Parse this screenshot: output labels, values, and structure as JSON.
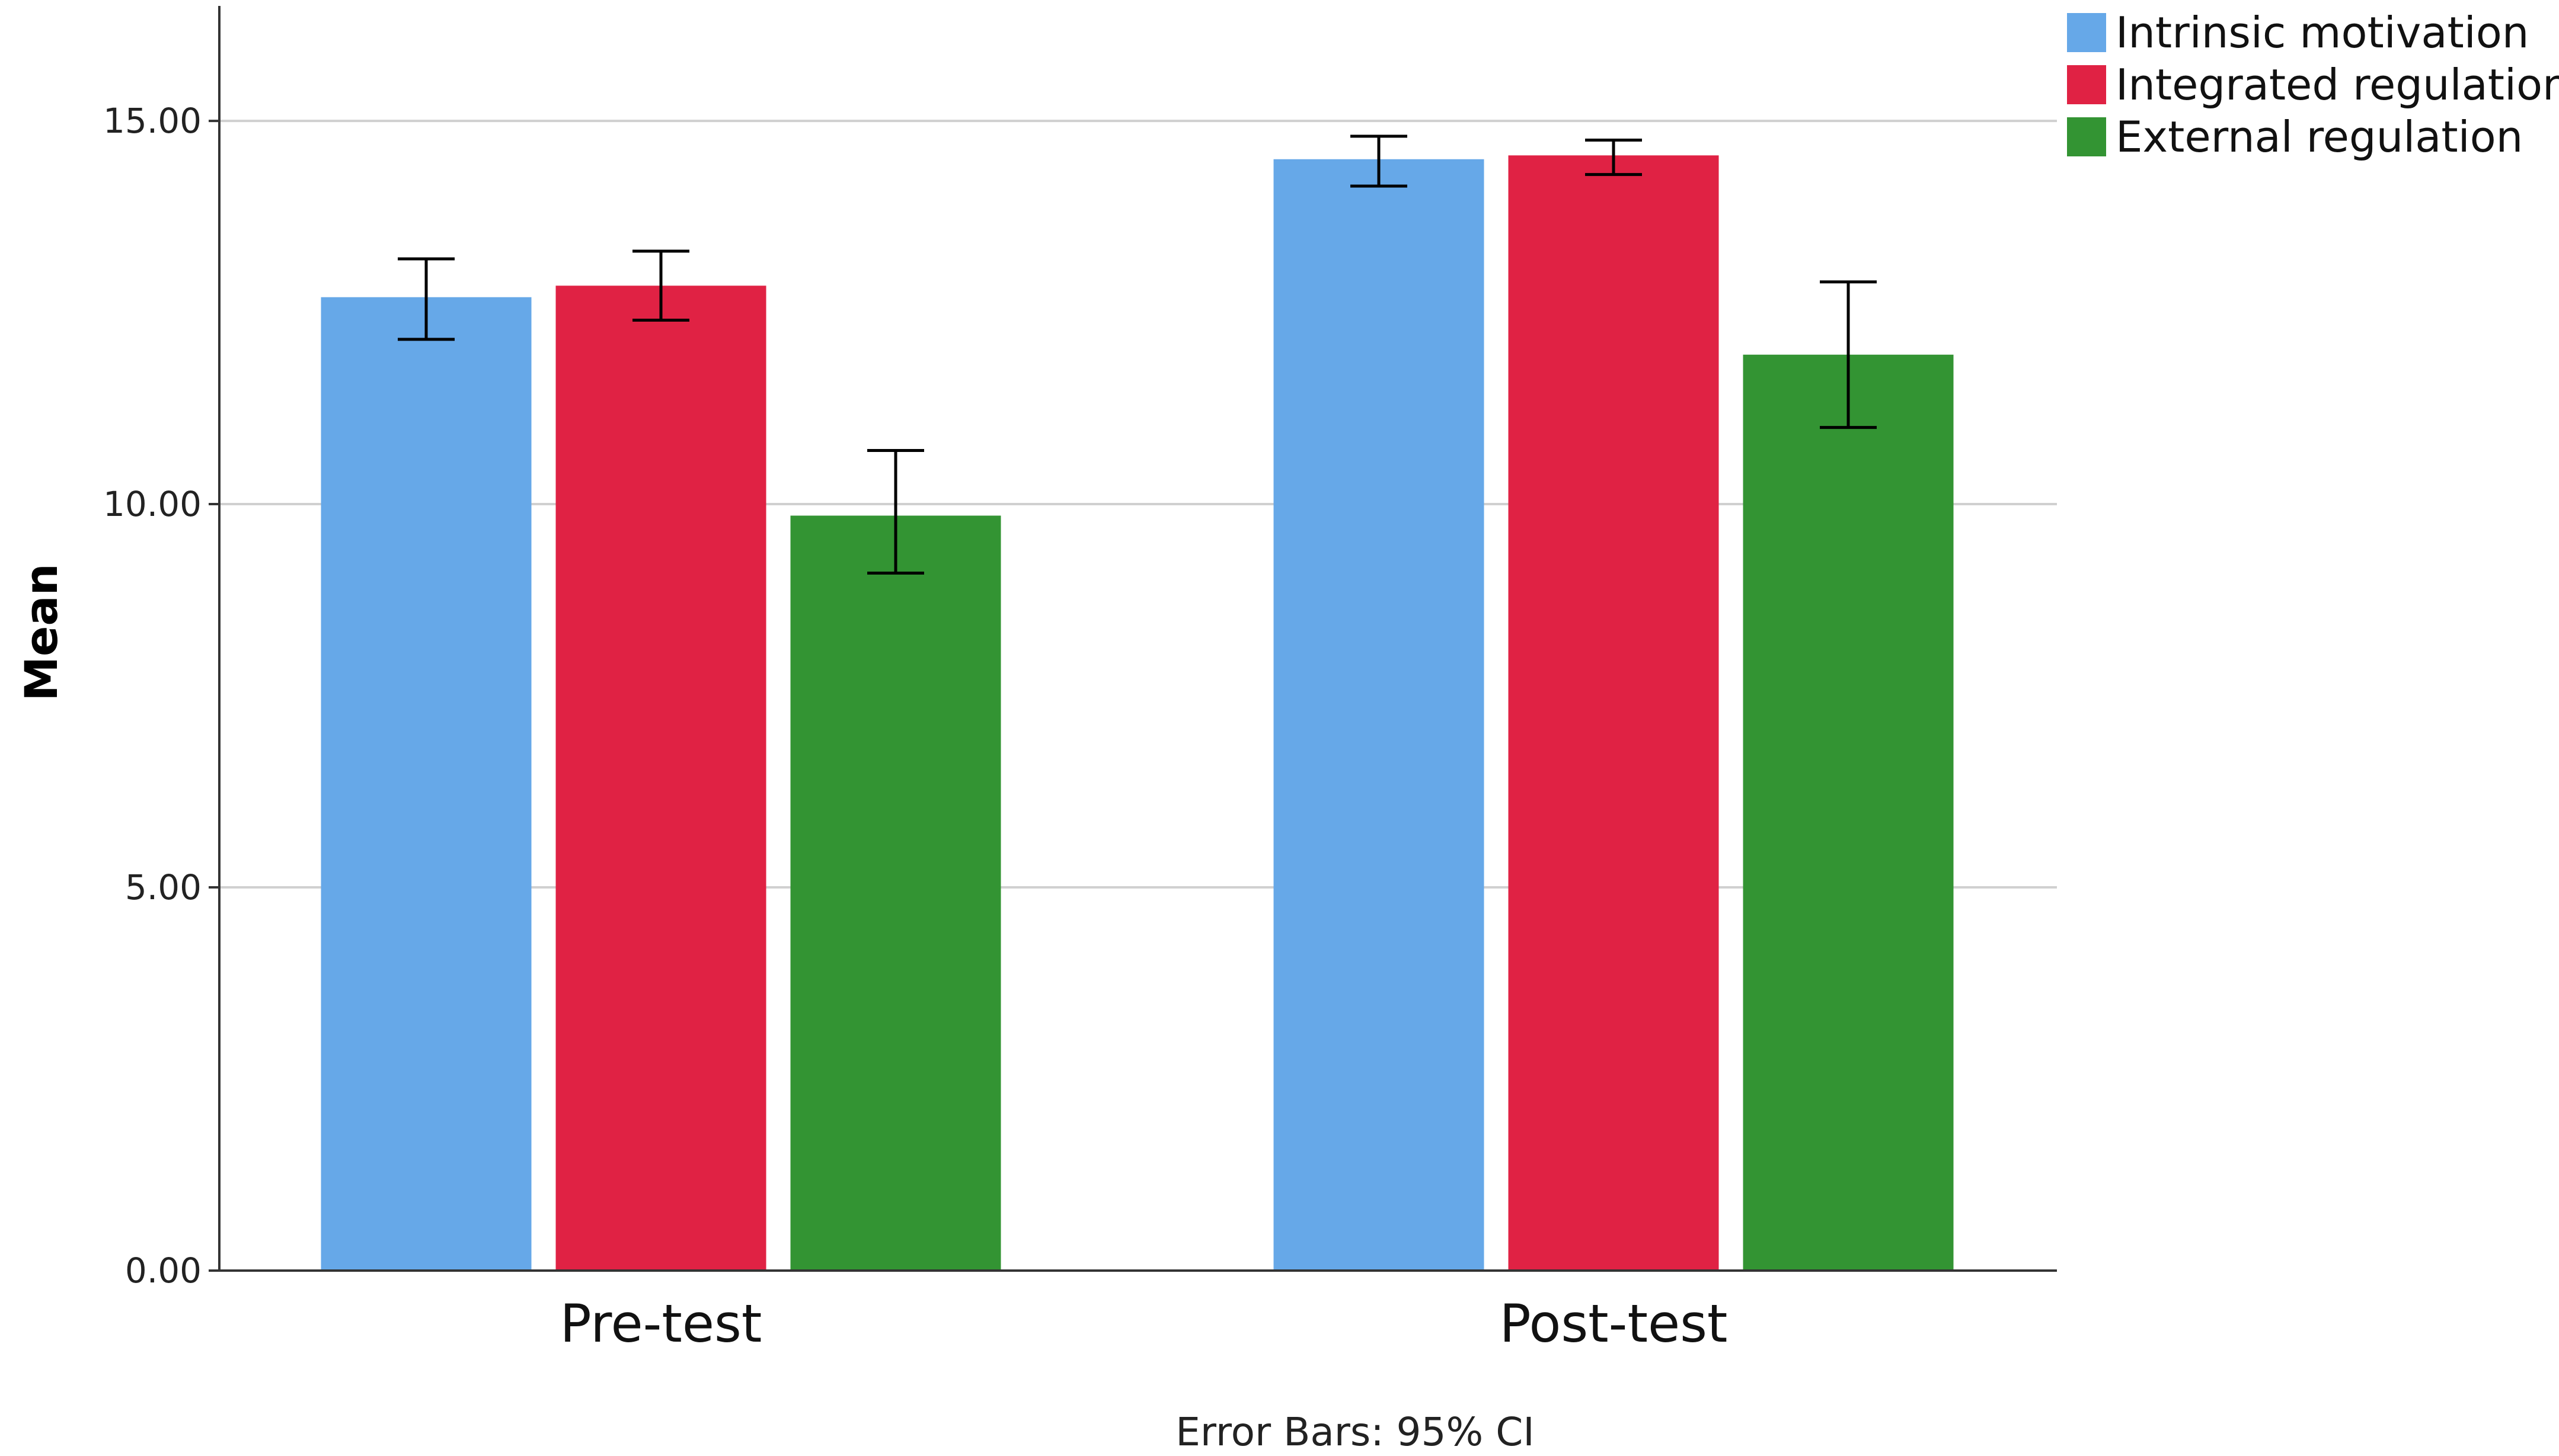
{
  "chart_data": {
    "type": "bar",
    "title": "",
    "xlabel": "",
    "ylabel": "Mean",
    "ylim": [
      0,
      16.5
    ],
    "yticks": [
      "0.00",
      "5.00",
      "10.00",
      "15.00"
    ],
    "ytick_values": [
      0,
      5,
      10,
      15
    ],
    "grid": true,
    "legend_position": "top-right",
    "categories": [
      "Pre-test",
      "Post-test"
    ],
    "series": [
      {
        "name": "Intrinsic motivation",
        "color": "#66a8e8",
        "values": [
          12.7,
          14.5
        ],
        "ci_low": [
          12.15,
          14.15
        ],
        "ci_high": [
          13.2,
          14.8
        ]
      },
      {
        "name": "Integrated regulation",
        "color": "#e02244",
        "values": [
          12.85,
          14.55
        ],
        "ci_low": [
          12.4,
          14.3
        ],
        "ci_high": [
          13.3,
          14.75
        ]
      },
      {
        "name": "External regulation",
        "color": "#339433",
        "values": [
          9.85,
          11.95
        ],
        "ci_low": [
          9.1,
          11.0
        ],
        "ci_high": [
          10.7,
          12.9
        ]
      }
    ],
    "footnote": "Error Bars: 95% CI"
  }
}
